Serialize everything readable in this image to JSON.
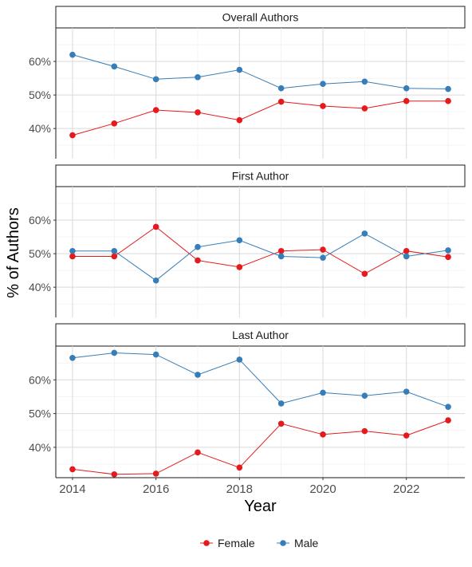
{
  "chart_data": {
    "type": "line",
    "x": [
      2014,
      2015,
      2016,
      2017,
      2018,
      2019,
      2020,
      2021,
      2022,
      2023
    ],
    "x_ticks": [
      "2014",
      "2016",
      "2018",
      "2020",
      "2022"
    ],
    "y_ticks": [
      "40%",
      "50%",
      "60%"
    ],
    "xlabel": "Year",
    "ylabel": "% of Authors",
    "grid": true,
    "legend_position": "bottom",
    "colors": {
      "Female": "#e41a1c",
      "Male": "#377eb8"
    },
    "legend": [
      {
        "name": "Female",
        "color": "#e41a1c"
      },
      {
        "name": "Male",
        "color": "#377eb8"
      }
    ],
    "panels": [
      {
        "title": "Overall Authors",
        "ylim": [
          31,
          70
        ],
        "series": [
          {
            "name": "Female",
            "values": [
              38,
              41.5,
              45.5,
              44.8,
              42.5,
              48,
              46.7,
              46,
              48.2,
              48.2
            ]
          },
          {
            "name": "Male",
            "values": [
              62,
              58.5,
              54.7,
              55.3,
              57.5,
              52,
              53.3,
              54,
              52,
              51.8
            ]
          }
        ]
      },
      {
        "title": "First Author",
        "ylim": [
          31,
          70
        ],
        "series": [
          {
            "name": "Female",
            "values": [
              49.2,
              49.2,
              58,
              48,
              46,
              50.8,
              51.2,
              44,
              50.8,
              49
            ]
          },
          {
            "name": "Male",
            "values": [
              50.8,
              50.8,
              42,
              52,
              54,
              49.2,
              48.8,
              56,
              49.2,
              51
            ]
          }
        ]
      },
      {
        "title": "Last Author",
        "ylim": [
          31,
          70
        ],
        "series": [
          {
            "name": "Female",
            "values": [
              33.5,
              32,
              32.2,
              38.5,
              34,
              47,
              43.8,
              44.8,
              43.5,
              48
            ]
          },
          {
            "name": "Male",
            "values": [
              66.5,
              68,
              67.5,
              61.5,
              66,
              53,
              56.2,
              55.3,
              56.5,
              52
            ]
          }
        ]
      }
    ]
  }
}
